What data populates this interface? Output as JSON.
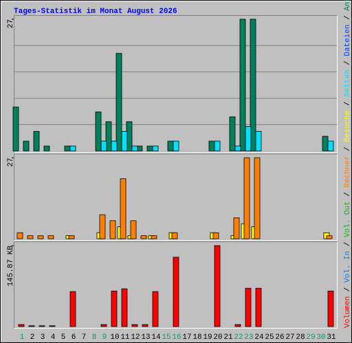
{
  "chart_data": {
    "title": "Tages-Statistik im Monat August 2026",
    "separator": "/",
    "categories": [
      "1",
      "2",
      "3",
      "4",
      "5",
      "6",
      "7",
      "8",
      "9",
      "10",
      "11",
      "12",
      "13",
      "14",
      "15",
      "16",
      "17",
      "18",
      "19",
      "20",
      "21",
      "22",
      "23",
      "24",
      "25",
      "26",
      "27",
      "28",
      "29",
      "30",
      "31"
    ],
    "category_colors": [
      "#00a060",
      "#000000",
      "#000000",
      "#000000",
      "#000000",
      "#000000",
      "#000000",
      "#00a060",
      "#00a060",
      "#000000",
      "#000000",
      "#000000",
      "#000000",
      "#000000",
      "#00a060",
      "#00a060",
      "#000000",
      "#000000",
      "#000000",
      "#000000",
      "#000000",
      "#00a060",
      "#00a060",
      "#000000",
      "#000000",
      "#000000",
      "#000000",
      "#000000",
      "#00a060",
      "#00a060",
      "#000000"
    ],
    "panels": [
      {
        "type": "bar",
        "ylim": [
          0,
          27
        ],
        "yticks": [
          27
        ],
        "grid": true,
        "series": [
          {
            "name": "Anfragen",
            "color": "#00805c",
            "values": [
              9,
              2,
              4,
              1,
              0,
              1,
              0,
              0,
              8,
              6,
              20,
              6,
              1,
              1,
              0,
              2,
              0,
              0,
              0,
              2,
              0,
              7,
              27,
              27,
              0,
              0,
              0,
              0,
              0,
              0,
              3
            ]
          },
          {
            "name": "Dateien",
            "color": "#0040ff",
            "values": [
              0,
              0,
              0,
              0,
              0,
              0,
              0,
              0,
              0,
              0,
              0,
              0,
              0,
              0,
              0,
              0,
              0,
              0,
              0,
              0,
              0,
              0,
              0,
              0,
              0,
              0,
              0,
              0,
              0,
              0,
              0
            ]
          },
          {
            "name": "Seiten",
            "color": "#00e0ff",
            "values": [
              0,
              0,
              0,
              0,
              0,
              1,
              0,
              0,
              2,
              2,
              4,
              1,
              0,
              1,
              0,
              2,
              0,
              0,
              0,
              2,
              0,
              1,
              5,
              4,
              0,
              0,
              0,
              0,
              0,
              0,
              2
            ]
          }
        ]
      },
      {
        "type": "bar",
        "ylim": [
          0,
          27
        ],
        "yticks": [
          27
        ],
        "grid": false,
        "series": [
          {
            "name": "Besuche",
            "color": "#ffff00",
            "values": [
              0,
              0,
              0,
              0,
              0,
              1,
              0,
              0,
              2,
              0,
              4,
              1,
              0,
              1,
              0,
              2,
              0,
              0,
              0,
              2,
              0,
              1,
              5,
              4,
              0,
              0,
              0,
              0,
              0,
              0,
              2
            ]
          },
          {
            "name": "Rechner",
            "color": "#ff8000",
            "values": [
              2,
              1,
              1,
              1,
              0,
              1,
              0,
              0,
              8,
              6,
              20,
              6,
              1,
              1,
              0,
              2,
              0,
              0,
              0,
              2,
              0,
              7,
              27,
              27,
              0,
              0,
              0,
              0,
              0,
              0,
              1
            ]
          }
        ]
      },
      {
        "type": "bar",
        "ylim": [
          0,
          145.87
        ],
        "yticks": [
          {
            "value": 145.87,
            "label": "145.87 KB"
          }
        ],
        "grid": false,
        "series": [
          {
            "name": "Vol. Out",
            "color": "#00c000",
            "values": [
              0,
              0,
              0,
              0,
              0,
              0,
              0,
              0,
              0,
              0,
              0,
              0,
              0,
              0,
              0,
              0,
              0,
              0,
              0,
              0,
              0,
              0,
              0,
              0,
              0,
              0,
              0,
              0,
              0,
              0,
              0
            ]
          },
          {
            "name": "Vol. In",
            "color": "#0080ff",
            "values": [
              0,
              0,
              0,
              0,
              0,
              0,
              0,
              0,
              0,
              0,
              0,
              0,
              0,
              0,
              0,
              0,
              0,
              0,
              0,
              0,
              0,
              0,
              0,
              0,
              0,
              0,
              0,
              0,
              0,
              0,
              0
            ]
          },
          {
            "name": "Volumen",
            "color": "#ff0000",
            "values": [
              3.6,
              1.5,
              1.5,
              1.5,
              0,
              63,
              0,
              0,
              3.6,
              64,
              68,
              3.6,
              3.6,
              63,
              0,
              125,
              0,
              0,
              0,
              145.87,
              0,
              3.6,
              69,
              69,
              0,
              0,
              0,
              0,
              0,
              0,
              64
            ]
          }
        ]
      }
    ]
  }
}
